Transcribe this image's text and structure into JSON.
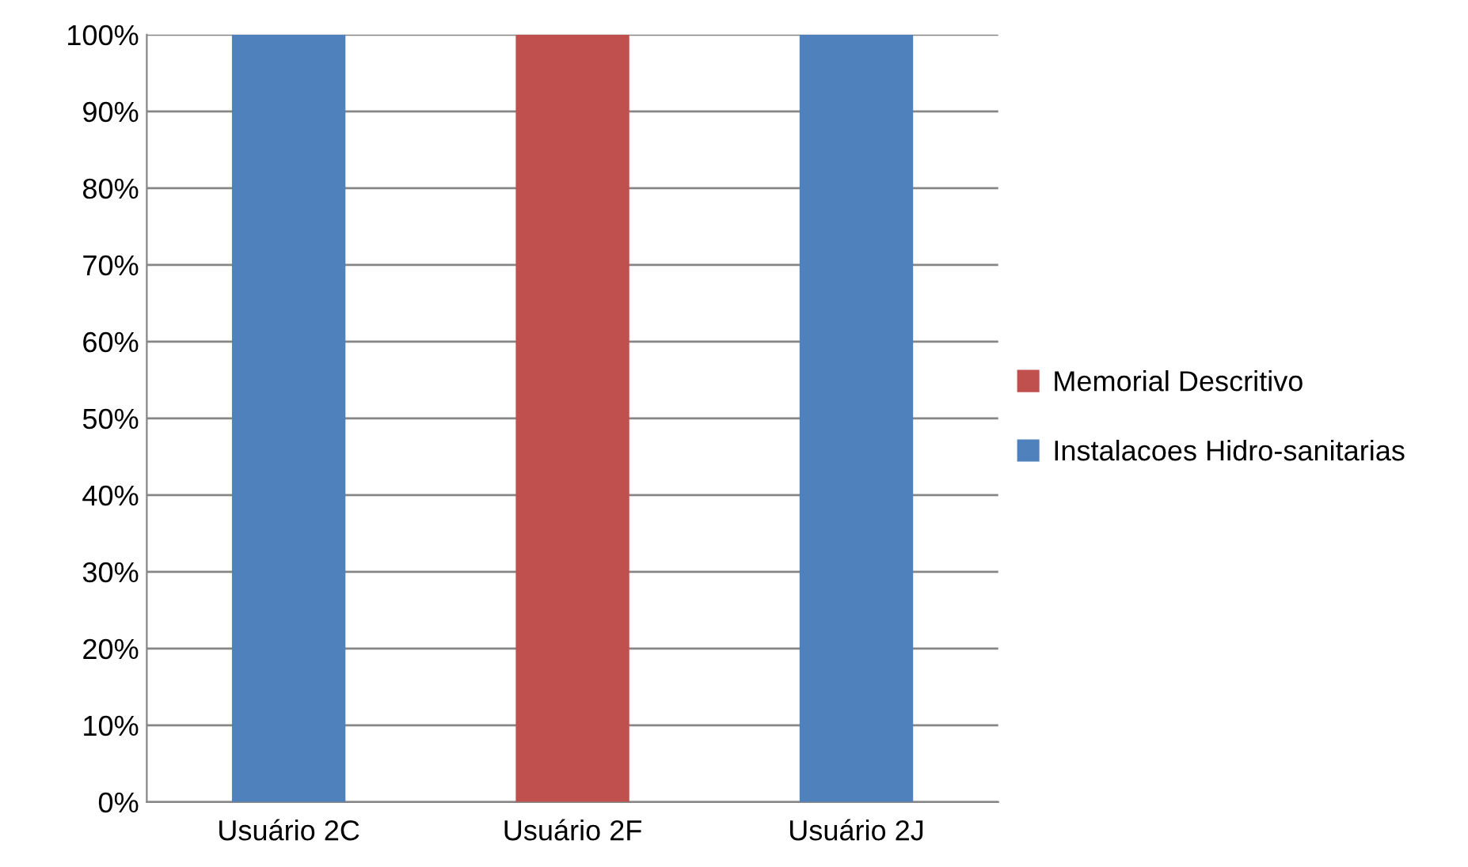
{
  "chart_data": {
    "type": "bar",
    "stacked": true,
    "categories": [
      "Usuário 2C",
      "Usuário 2F",
      "Usuário 2J"
    ],
    "series": [
      {
        "name": "Instalacoes Hidro-sanitarias",
        "color": "#4f81bd",
        "values": [
          100,
          0,
          100
        ]
      },
      {
        "name": "Memorial Descritivo",
        "color": "#c0504d",
        "values": [
          0,
          100,
          0
        ]
      }
    ],
    "ylim": [
      0,
      100
    ],
    "yticks": [
      {
        "value": 0,
        "label": "0%"
      },
      {
        "value": 10,
        "label": "10%"
      },
      {
        "value": 20,
        "label": "20%"
      },
      {
        "value": 30,
        "label": "30%"
      },
      {
        "value": 40,
        "label": "40%"
      },
      {
        "value": 50,
        "label": "50%"
      },
      {
        "value": 60,
        "label": "60%"
      },
      {
        "value": 70,
        "label": "70%"
      },
      {
        "value": 80,
        "label": "80%"
      },
      {
        "value": 90,
        "label": "90%"
      },
      {
        "value": 100,
        "label": "100%"
      }
    ],
    "grid": "y",
    "legend": "right"
  }
}
